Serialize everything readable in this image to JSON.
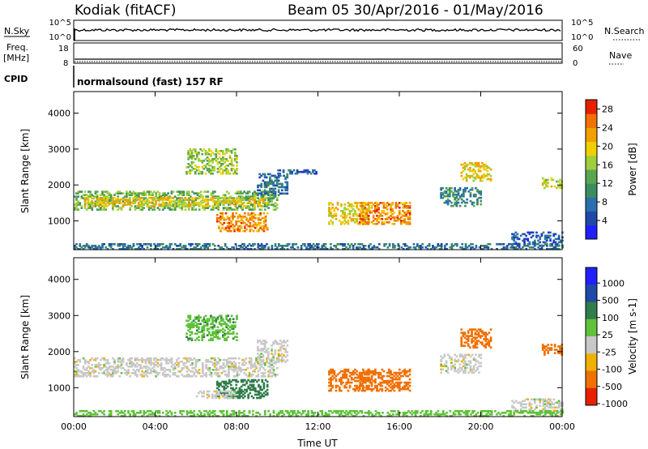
{
  "header": {
    "station": "Kodiak (fitACF)",
    "beam_date": "Beam 05  30/Apr/2016 - 01/May/2016"
  },
  "top_panels": {
    "nsky_label": "N.Sky",
    "nsky_tick_top": "10^5",
    "nsky_tick_bottom": "10^0",
    "nsearch_label": "N.Search",
    "nsearch_tick_top": "10^5",
    "nsearch_tick_bottom": "10^0",
    "freq_label": "Freq.",
    "freq_unit": "[MHz]",
    "freq_ticks": [
      "18",
      "8"
    ],
    "nave_label": "Nave",
    "nave_ticks": [
      "60",
      "0"
    ],
    "cpid_label": "CPID",
    "cpid_text": "normalsound (fast) 157 RF"
  },
  "colors": {
    "power_scale": [
      "#2020ff",
      "#1f48a8",
      "#2a6fae",
      "#3c8c60",
      "#5aa650",
      "#9fcf3a",
      "#f0d000",
      "#f0a000",
      "#f07000",
      "#e82000"
    ],
    "velocity_scale": [
      "#2020ff",
      "#1f48a8",
      "#2f7d4a",
      "#5fc23a",
      "#c8c8c8",
      "#f0b000",
      "#f07000",
      "#e82000"
    ]
  },
  "chart_data": [
    {
      "type": "heatmap",
      "title": "",
      "ylabel": "Slant Range [km]",
      "xlabel": "",
      "ylim": [
        200,
        4600
      ],
      "xlim_hours": [
        0,
        24
      ],
      "y_ticks": [
        "1000",
        "2000",
        "3000",
        "4000"
      ],
      "x_ticks": [
        "00:00",
        "04:00",
        "08:00",
        "12:00",
        "16:00",
        "20:00",
        "00:00"
      ],
      "colorbar_label": "Power [dB]",
      "colorbar_ticks": [
        "4",
        "8",
        "12",
        "16",
        "20",
        "24",
        "28"
      ],
      "colorbar_range": [
        0,
        30
      ],
      "regions": [
        {
          "t0": 0.0,
          "t1": 10.0,
          "r0": 1300,
          "r1": 1800,
          "v": 14
        },
        {
          "t0": 0.5,
          "t1": 9.5,
          "r0": 1400,
          "r1": 1650,
          "v": 20
        },
        {
          "t0": 7.0,
          "t1": 9.5,
          "r0": 700,
          "r1": 1200,
          "v": 24
        },
        {
          "t0": 9.0,
          "t1": 10.5,
          "r0": 1700,
          "r1": 2300,
          "v": 8
        },
        {
          "t0": 12.5,
          "t1": 14.5,
          "r0": 900,
          "r1": 1500,
          "v": 20
        },
        {
          "t0": 14.0,
          "t1": 16.5,
          "r0": 900,
          "r1": 1500,
          "v": 24
        },
        {
          "t0": 5.5,
          "t1": 8.0,
          "r0": 2300,
          "r1": 3000,
          "v": 16
        },
        {
          "t0": 19.0,
          "t1": 20.5,
          "r0": 2100,
          "r1": 2600,
          "v": 20
        },
        {
          "t0": 18.0,
          "t1": 20.0,
          "r0": 1400,
          "r1": 1900,
          "v": 10
        },
        {
          "t0": 21.5,
          "t1": 24.0,
          "r0": 300,
          "r1": 700,
          "v": 6
        },
        {
          "t0": 23.0,
          "t1": 24.0,
          "r0": 1900,
          "r1": 2200,
          "v": 18
        },
        {
          "t0": 10.0,
          "t1": 12.0,
          "r0": 2300,
          "r1": 2400,
          "v": 6
        },
        {
          "t0": 0.0,
          "t1": 24.0,
          "r0": 200,
          "r1": 350,
          "v": 8
        }
      ]
    },
    {
      "type": "heatmap",
      "title": "",
      "ylabel": "Slant Range [km]",
      "xlabel": "Time UT",
      "ylim": [
        200,
        4600
      ],
      "xlim_hours": [
        0,
        24
      ],
      "y_ticks": [
        "1000",
        "2000",
        "3000",
        "4000"
      ],
      "x_ticks": [
        "00:00",
        "04:00",
        "08:00",
        "12:00",
        "16:00",
        "20:00",
        "00:00"
      ],
      "colorbar_label": "Velocity [m s-1]",
      "colorbar_ticks": [
        "1000",
        "500",
        "100",
        "25",
        "-25",
        "-100",
        "-500",
        "-1000"
      ],
      "regions": [
        {
          "t0": 0.0,
          "t1": 10.0,
          "r0": 1300,
          "r1": 1800,
          "v": 0
        },
        {
          "t0": 9.0,
          "t1": 10.5,
          "r0": 1700,
          "r1": 2300,
          "v": 0
        },
        {
          "t0": 7.0,
          "t1": 9.5,
          "r0": 700,
          "r1": 1200,
          "v": 150
        },
        {
          "t0": 6.0,
          "t1": 8.0,
          "r0": 700,
          "r1": 900,
          "v": 0
        },
        {
          "t0": 12.5,
          "t1": 14.5,
          "r0": 900,
          "r1": 1500,
          "v": -150
        },
        {
          "t0": 14.0,
          "t1": 16.5,
          "r0": 900,
          "r1": 1500,
          "v": -200
        },
        {
          "t0": 5.5,
          "t1": 8.0,
          "r0": 2300,
          "r1": 3000,
          "v": 80
        },
        {
          "t0": 19.0,
          "t1": 20.5,
          "r0": 2100,
          "r1": 2600,
          "v": -300
        },
        {
          "t0": 18.0,
          "t1": 20.0,
          "r0": 1400,
          "r1": 1900,
          "v": 0
        },
        {
          "t0": 21.5,
          "t1": 24.0,
          "r0": 300,
          "r1": 700,
          "v": 0
        },
        {
          "t0": 23.0,
          "t1": 24.0,
          "r0": 1900,
          "r1": 2200,
          "v": -200
        },
        {
          "t0": 0.0,
          "t1": 24.0,
          "r0": 200,
          "r1": 350,
          "v": 60
        }
      ]
    }
  ]
}
